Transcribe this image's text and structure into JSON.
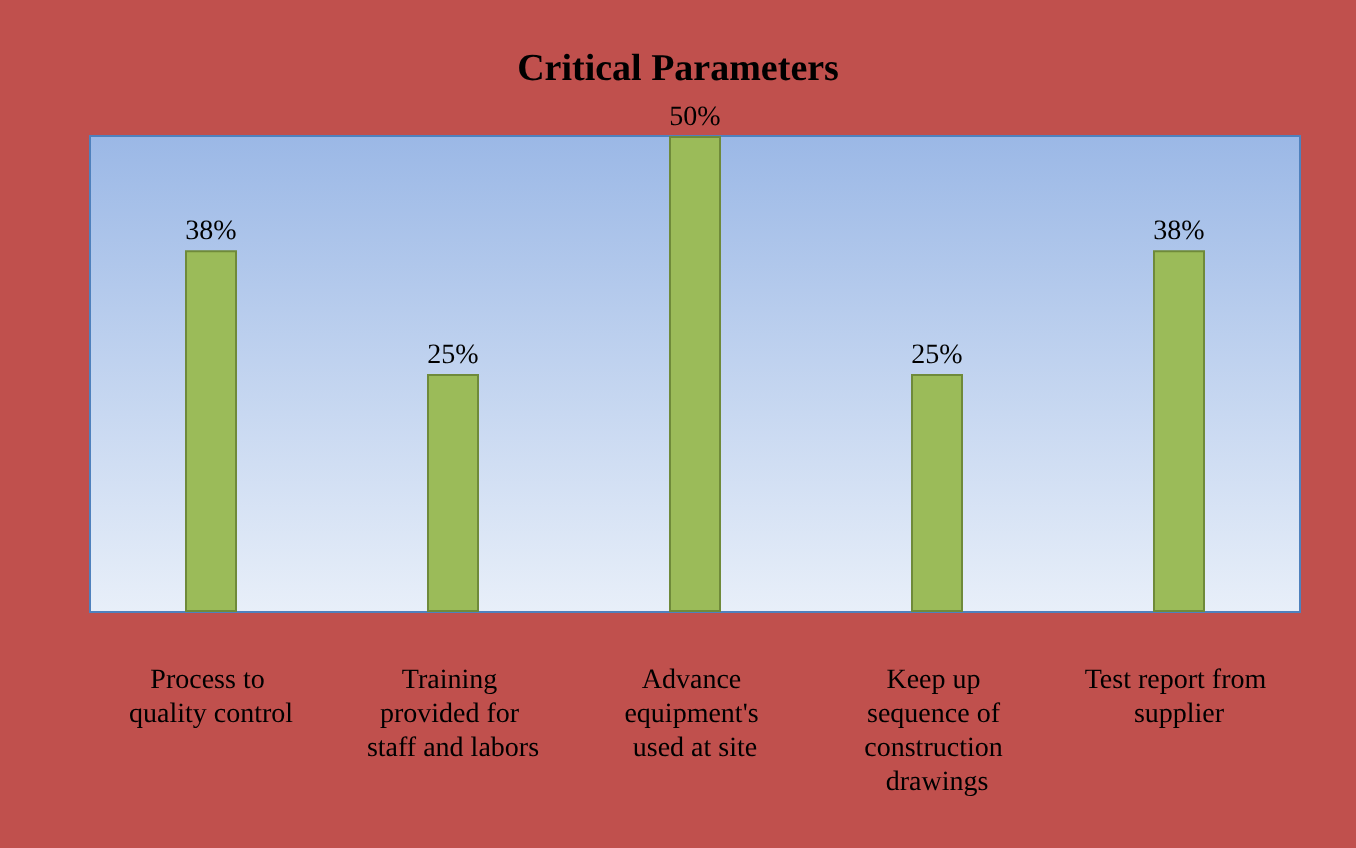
{
  "chart_data": {
    "type": "bar",
    "title": "Critical Parameters",
    "categories": [
      "Process to quality control",
      "Training provided for staff and labors",
      "Advance equipment's used at site",
      "Keep up sequence of construction drawings",
      "Test report from supplier"
    ],
    "values": [
      38,
      25,
      50,
      25,
      38
    ],
    "value_labels": [
      "38%",
      "25%",
      "50%",
      "25%",
      "38%"
    ],
    "color": "#9bbb59"
  }
}
